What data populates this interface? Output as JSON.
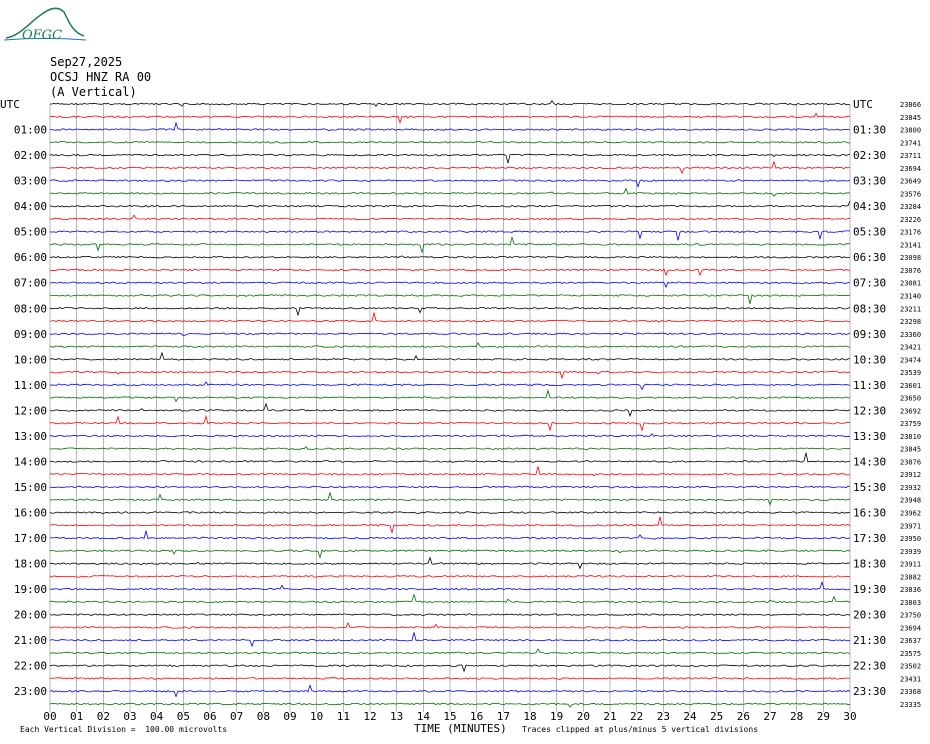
{
  "logo": {
    "text": "OFGC"
  },
  "header": {
    "date": "Sep27,2025",
    "station": "OCSJ HNZ RA 00",
    "component": "(A Vertical)"
  },
  "colors": {
    "trace_cycle": [
      "#000000",
      "#ff0000",
      "#0000ff",
      "#007000"
    ],
    "grid": "#888888"
  },
  "chart_data": {
    "type": "line",
    "title": "",
    "xlabel": "TIME (MINUTES)",
    "ylabel": "",
    "utc_label": "UTC",
    "x_ticks": [
      "00",
      "01",
      "02",
      "03",
      "04",
      "05",
      "06",
      "07",
      "08",
      "09",
      "10",
      "11",
      "12",
      "13",
      "14",
      "15",
      "16",
      "17",
      "18",
      "19",
      "20",
      "21",
      "22",
      "23",
      "24",
      "25",
      "26",
      "27",
      "28",
      "29",
      "30"
    ],
    "xlim": [
      0,
      30
    ],
    "left_times": [
      "01:00",
      "02:00",
      "03:00",
      "04:00",
      "05:00",
      "06:00",
      "07:00",
      "08:00",
      "09:00",
      "10:00",
      "11:00",
      "12:00",
      "13:00",
      "14:00",
      "15:00",
      "16:00",
      "17:00",
      "18:00",
      "19:00",
      "20:00",
      "21:00",
      "22:00",
      "23:00"
    ],
    "right_times": [
      "01:30",
      "02:30",
      "03:30",
      "04:30",
      "05:30",
      "06:30",
      "07:30",
      "08:30",
      "09:30",
      "10:30",
      "11:30",
      "12:30",
      "13:30",
      "14:30",
      "15:30",
      "16:30",
      "17:30",
      "18:30",
      "19:30",
      "20:30",
      "21:30",
      "22:30",
      "23:30"
    ],
    "trace_counts": [
      "23866",
      "23845",
      "23800",
      "23741",
      "23711",
      "23694",
      "23649",
      "23576",
      "23284",
      "23226",
      "23176",
      "23141",
      "23098",
      "23076",
      "23081",
      "23140",
      "23211",
      "23298",
      "23360",
      "23421",
      "23474",
      "23539",
      "23601",
      "23650",
      "23692",
      "23759",
      "23810",
      "23845",
      "23876",
      "23912",
      "23932",
      "23948",
      "23962",
      "23971",
      "23950",
      "23939",
      "23911",
      "23882",
      "23836",
      "23803",
      "23750",
      "23694",
      "23637",
      "23575",
      "23502",
      "23431",
      "23368",
      "23335"
    ],
    "footnote_left": "Each Vertical Division =  100.00 microvolts",
    "footnote_right": "Traces clipped at plus/minus 5 vertical divisions"
  }
}
